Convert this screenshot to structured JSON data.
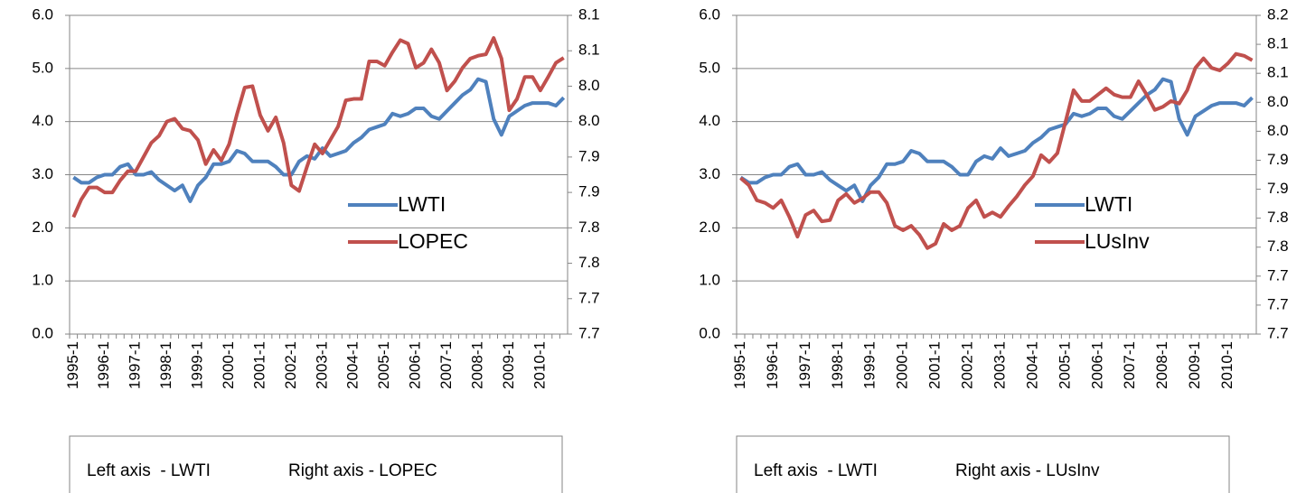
{
  "chart_data": [
    {
      "type": "line",
      "categories": [
        "1995-1",
        null,
        null,
        null,
        "1996-1",
        null,
        null,
        null,
        "1997-1",
        null,
        null,
        null,
        "1998-1",
        null,
        null,
        null,
        "1999-1",
        null,
        null,
        null,
        "2000-1",
        null,
        null,
        null,
        "2001-1",
        null,
        null,
        null,
        "2002-1",
        null,
        null,
        null,
        "2003-1",
        null,
        null,
        null,
        "2004-1",
        null,
        null,
        null,
        "2005-1",
        null,
        null,
        null,
        "2006-1",
        null,
        null,
        null,
        "2007-1",
        null,
        null,
        null,
        "2008-1",
        null,
        null,
        null,
        "2009-1",
        null,
        null,
        null,
        "2010-1",
        null,
        null,
        null
      ],
      "series": [
        {
          "name": "LWTI",
          "color": "#4f81bd",
          "values": [
            2.95,
            2.85,
            2.85,
            2.95,
            3.0,
            3.0,
            3.15,
            3.2,
            3.0,
            3.0,
            3.05,
            2.9,
            2.8,
            2.7,
            2.8,
            2.5,
            2.8,
            2.95,
            3.2,
            3.2,
            3.25,
            3.45,
            3.4,
            3.25,
            3.25,
            3.25,
            3.15,
            3.0,
            3.0,
            3.25,
            3.35,
            3.3,
            3.5,
            3.35,
            3.4,
            3.45,
            3.6,
            3.7,
            3.85,
            3.9,
            3.95,
            4.15,
            4.1,
            4.15,
            4.25,
            4.25,
            4.1,
            4.05,
            4.2,
            4.35,
            4.5,
            4.6,
            4.8,
            4.75,
            4.05,
            3.75,
            4.1,
            4.2,
            4.3,
            4.35,
            4.35,
            4.35,
            4.3,
            4.45
          ]
        },
        {
          "name": "LOPEC",
          "color": "#c0504d",
          "axis": "y2",
          "values": [
            7.815,
            7.84,
            7.857,
            7.857,
            7.85,
            7.85,
            7.867,
            7.88,
            7.88,
            7.9,
            7.92,
            7.93,
            7.95,
            7.954,
            7.94,
            7.937,
            7.924,
            7.89,
            7.91,
            7.895,
            7.918,
            7.96,
            7.998,
            8.0,
            7.959,
            7.937,
            7.956,
            7.92,
            7.86,
            7.852,
            7.886,
            7.918,
            7.905,
            7.924,
            7.943,
            7.98,
            7.982,
            7.982,
            8.035,
            8.035,
            8.029,
            8.048,
            8.065,
            8.06,
            8.026,
            8.033,
            8.052,
            8.033,
            7.994,
            8.007,
            8.026,
            8.039,
            8.043,
            8.045,
            8.068,
            8.039,
            7.966,
            7.982,
            8.013,
            8.013,
            7.994,
            8.013,
            8.033,
            8.04
          ]
        }
      ],
      "ylim": [
        0,
        6
      ],
      "yticks": [
        {
          "value": 0,
          "label": "0.0"
        },
        {
          "value": 1,
          "label": "1.0"
        },
        {
          "value": 2,
          "label": "2.0"
        },
        {
          "value": 3,
          "label": "3.0"
        },
        {
          "value": 4,
          "label": "4.0"
        },
        {
          "value": 5,
          "label": "5.0"
        },
        {
          "value": 6,
          "label": "6.0"
        }
      ],
      "y2lim": [
        7.65,
        8.1
      ],
      "y2ticks": [
        {
          "value": 7.65,
          "label": "7.7"
        },
        {
          "value": 7.7,
          "label": "7.7"
        },
        {
          "value": 7.75,
          "label": "7.8"
        },
        {
          "value": 7.8,
          "label": "7.8"
        },
        {
          "value": 7.85,
          "label": "7.9"
        },
        {
          "value": 7.9,
          "label": "7.9"
        },
        {
          "value": 7.95,
          "label": "8.0"
        },
        {
          "value": 8.0,
          "label": "8.0"
        },
        {
          "value": 8.05,
          "label": "8.1"
        },
        {
          "value": 8.1,
          "label": "8.1"
        }
      ],
      "grid": true,
      "legend": "right",
      "annotations": [
        "Left axis  - LWTI",
        "Right axis - LOPEC"
      ]
    },
    {
      "type": "line",
      "categories": [
        "1995-1",
        null,
        null,
        null,
        "1996-1",
        null,
        null,
        null,
        "1997-1",
        null,
        null,
        null,
        "1998-1",
        null,
        null,
        null,
        "1999-1",
        null,
        null,
        null,
        "2000-1",
        null,
        null,
        null,
        "2001-1",
        null,
        null,
        null,
        "2002-1",
        null,
        null,
        null,
        "2003-1",
        null,
        null,
        null,
        "2004-1",
        null,
        null,
        null,
        "2005-1",
        null,
        null,
        null,
        "2006-1",
        null,
        null,
        null,
        "2007-1",
        null,
        null,
        null,
        "2008-1",
        null,
        null,
        null,
        "2009-1",
        null,
        null,
        null,
        "2010-1",
        null,
        null,
        null
      ],
      "series": [
        {
          "name": "LWTI",
          "color": "#4f81bd",
          "values": [
            2.95,
            2.85,
            2.85,
            2.95,
            3.0,
            3.0,
            3.15,
            3.2,
            3.0,
            3.0,
            3.05,
            2.9,
            2.8,
            2.7,
            2.8,
            2.5,
            2.8,
            2.95,
            3.2,
            3.2,
            3.25,
            3.45,
            3.4,
            3.25,
            3.25,
            3.25,
            3.15,
            3.0,
            3.0,
            3.25,
            3.35,
            3.3,
            3.5,
            3.35,
            3.4,
            3.45,
            3.6,
            3.7,
            3.85,
            3.9,
            3.95,
            4.15,
            4.1,
            4.15,
            4.25,
            4.25,
            4.1,
            4.05,
            4.2,
            4.35,
            4.5,
            4.6,
            4.8,
            4.75,
            4.05,
            3.75,
            4.1,
            4.2,
            4.3,
            4.35,
            4.35,
            4.35,
            4.3,
            4.45
          ]
        },
        {
          "name": "LUsInv",
          "color": "#c0504d",
          "axis": "y2",
          "values": [
            7.897,
            7.886,
            7.862,
            7.858,
            7.85,
            7.862,
            7.836,
            7.805,
            7.839,
            7.846,
            7.829,
            7.831,
            7.862,
            7.872,
            7.858,
            7.865,
            7.875,
            7.875,
            7.858,
            7.822,
            7.815,
            7.822,
            7.808,
            7.787,
            7.794,
            7.825,
            7.815,
            7.822,
            7.85,
            7.862,
            7.836,
            7.843,
            7.836,
            7.853,
            7.868,
            7.886,
            7.9,
            7.933,
            7.922,
            7.936,
            7.985,
            8.035,
            8.018,
            8.018,
            8.028,
            8.038,
            8.028,
            8.024,
            8.024,
            8.049,
            8.028,
            8.004,
            8.009,
            8.018,
            8.014,
            8.035,
            8.07,
            8.085,
            8.07,
            8.066,
            8.077,
            8.092,
            8.089,
            8.082
          ]
        }
      ],
      "ylim": [
        0,
        6
      ],
      "yticks": [
        {
          "value": 0,
          "label": "0.0"
        },
        {
          "value": 1,
          "label": "1.0"
        },
        {
          "value": 2,
          "label": "2.0"
        },
        {
          "value": 3,
          "label": "3.0"
        },
        {
          "value": 4,
          "label": "4.0"
        },
        {
          "value": 5,
          "label": "5.0"
        },
        {
          "value": 6,
          "label": "6.0"
        }
      ],
      "y2lim": [
        7.652,
        8.1525
      ],
      "y2ticks": [
        {
          "value": 7.652,
          "label": "7.7"
        },
        {
          "value": 7.6975,
          "label": "7.7"
        },
        {
          "value": 7.743,
          "label": "7.7"
        },
        {
          "value": 7.7885,
          "label": "7.8"
        },
        {
          "value": 7.834,
          "label": "7.8"
        },
        {
          "value": 7.8795,
          "label": "7.9"
        },
        {
          "value": 7.925,
          "label": "7.9"
        },
        {
          "value": 7.9705,
          "label": "8.0"
        },
        {
          "value": 8.016,
          "label": "8.0"
        },
        {
          "value": 8.0615,
          "label": "8.1"
        },
        {
          "value": 8.107,
          "label": "8.1"
        },
        {
          "value": 8.1525,
          "label": "8.2"
        }
      ],
      "grid": true,
      "legend": "right",
      "annotations": [
        "Left axis  - LWTI",
        "Right axis - LUsInv"
      ]
    }
  ]
}
